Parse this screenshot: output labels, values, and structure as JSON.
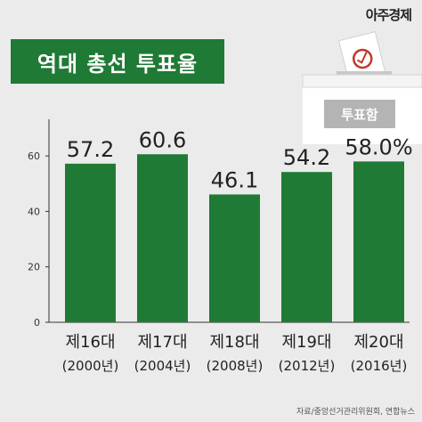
{
  "header": {
    "logo": "아주경제"
  },
  "title": "역대 총선 투표율",
  "ballot_box": {
    "label": "투표함"
  },
  "source": "자료/중앙선거관리위원회, 연합뉴스",
  "colors": {
    "bar": "#1f7a35",
    "title_bg": "#1f7a35",
    "background": "#ebebeb",
    "box_label_bg": "#b4b4b4"
  },
  "chart_data": {
    "type": "bar",
    "categories": [
      "제16대",
      "제17대",
      "제18대",
      "제19대",
      "제20대"
    ],
    "category_years": [
      "(2000년)",
      "(2004년)",
      "(2008년)",
      "(2012년)",
      "(2016년)"
    ],
    "values": [
      57.2,
      60.6,
      46.1,
      54.2,
      58.0
    ],
    "value_labels": [
      "57.2",
      "60.6",
      "46.1",
      "54.2",
      "58.0%"
    ],
    "yticks": [
      0,
      20,
      40,
      60
    ],
    "ylim": [
      0,
      70
    ],
    "grid": false
  }
}
